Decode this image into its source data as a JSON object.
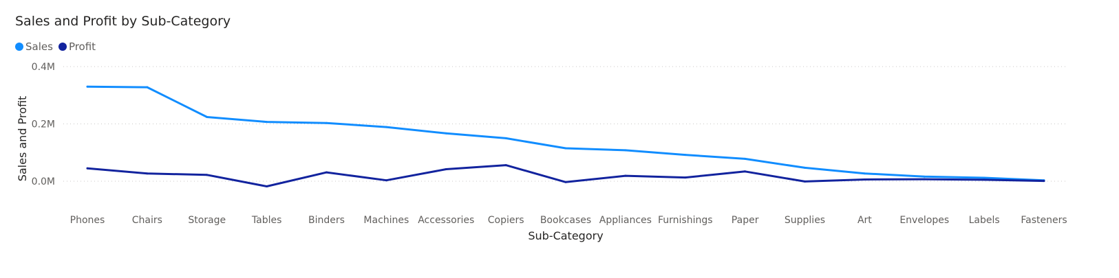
{
  "chart_data": {
    "type": "line",
    "title": "Sales and Profit by Sub-Category",
    "xlabel": "Sub-Category",
    "ylabel": "Sales and Profit",
    "legend_position": "top-left",
    "grid": true,
    "ylim": [
      -0.1,
      0.4
    ],
    "yticks": [
      {
        "value": 0.4,
        "label": "0.4M"
      },
      {
        "value": 0.2,
        "label": "0.2M"
      },
      {
        "value": 0.0,
        "label": "0.0M"
      }
    ],
    "categories": [
      "Phones",
      "Chairs",
      "Storage",
      "Tables",
      "Binders",
      "Machines",
      "Accessories",
      "Copiers",
      "Bookcases",
      "Appliances",
      "Furnishings",
      "Paper",
      "Supplies",
      "Art",
      "Envelopes",
      "Labels",
      "Fasteners"
    ],
    "series": [
      {
        "name": "Sales",
        "color": "#118dff",
        "values": [
          0.33,
          0.328,
          0.224,
          0.207,
          0.203,
          0.189,
          0.167,
          0.15,
          0.115,
          0.108,
          0.092,
          0.078,
          0.047,
          0.027,
          0.016,
          0.012,
          0.003
        ]
      },
      {
        "name": "Profit",
        "color": "#12239e",
        "values": [
          0.045,
          0.027,
          0.022,
          -0.018,
          0.031,
          0.003,
          0.042,
          0.056,
          -0.003,
          0.019,
          0.013,
          0.034,
          -0.001,
          0.006,
          0.007,
          0.005,
          0.001
        ]
      }
    ]
  }
}
